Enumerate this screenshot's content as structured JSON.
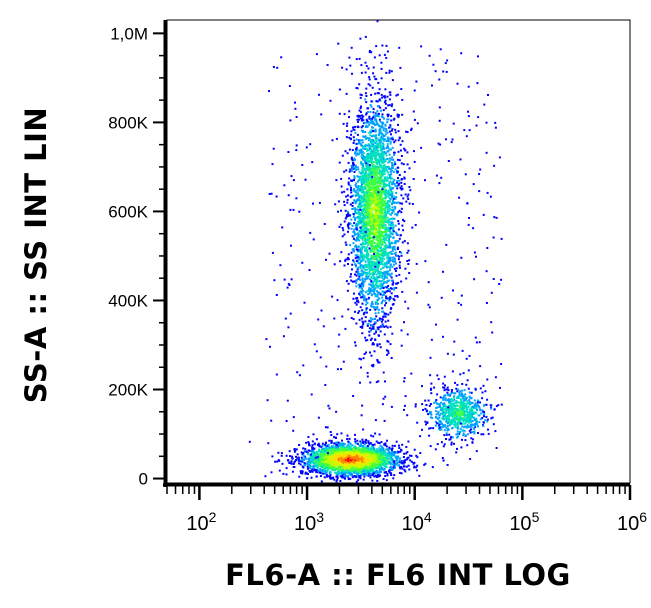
{
  "chart_data": {
    "type": "scatter",
    "title": "",
    "xlabel": "FL6-A :: FL6 INT LOG",
    "ylabel": "SS-A :: SS INT LIN",
    "x_scale": "log",
    "y_scale": "linear",
    "xlim": [
      50,
      1000000
    ],
    "ylim": [
      -10000,
      1030000
    ],
    "grid": false,
    "legend": "none",
    "x_ticks": [
      {
        "value": 100,
        "base": "10",
        "exp": "2"
      },
      {
        "value": 1000,
        "base": "10",
        "exp": "3"
      },
      {
        "value": 10000,
        "base": "10",
        "exp": "4"
      },
      {
        "value": 100000,
        "base": "10",
        "exp": "5"
      },
      {
        "value": 1000000,
        "base": "10",
        "exp": "6"
      }
    ],
    "y_ticks": [
      {
        "value": 0,
        "label": "0"
      },
      {
        "value": 200000,
        "label": "200K"
      },
      {
        "value": 400000,
        "label": "400K"
      },
      {
        "value": 600000,
        "label": "600K"
      },
      {
        "value": 800000,
        "label": "800K"
      },
      {
        "value": 1000000,
        "label": "1,0M"
      }
    ],
    "density_colors": [
      "#0000ff",
      "#00a0ff",
      "#00e0c0",
      "#40ff40",
      "#c0ff00",
      "#ffe000",
      "#ff8000",
      "#ff0000"
    ],
    "populations": [
      {
        "name_visible": false,
        "center_x": 2500,
        "center_y": 45000,
        "spread_logx": 0.2,
        "spread_y": 16000,
        "count": 2600,
        "peak_level": 7
      },
      {
        "name_visible": false,
        "center_x": 4200,
        "center_y": 600000,
        "spread_logx": 0.1,
        "spread_y": 110000,
        "count": 3200,
        "peak_level": 4
      },
      {
        "name_visible": false,
        "center_x": 25000,
        "center_y": 150000,
        "spread_logx": 0.12,
        "spread_y": 25000,
        "count": 700,
        "peak_level": 3
      }
    ]
  }
}
